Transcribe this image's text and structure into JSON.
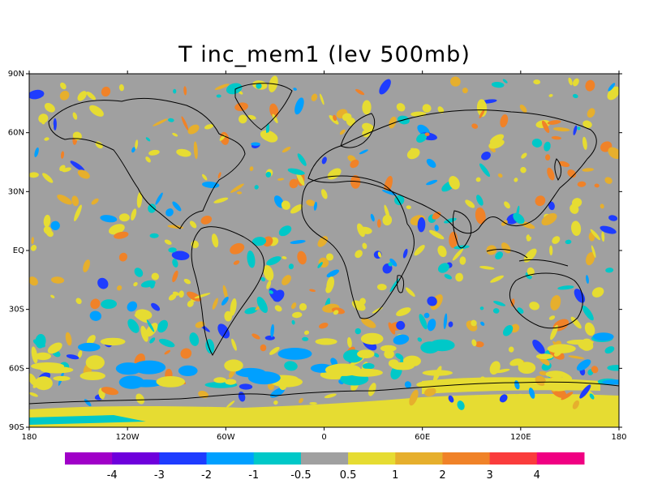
{
  "title": "T inc_mem1 (lev 500mb)",
  "lat_labels": [
    "90N",
    "60N",
    "30N",
    "EQ",
    "30S",
    "60S",
    "90S"
  ],
  "lon_labels": [
    "180",
    "120W",
    "60W",
    "0",
    "60E",
    "120E",
    "180"
  ],
  "colorbar": {
    "colors": [
      "#a000c8",
      "#6e00dc",
      "#1e3cff",
      "#00a0ff",
      "#00c8c8",
      "#a0a0a0",
      "#e6dc32",
      "#e6af2d",
      "#f08228",
      "#fa3c3c",
      "#f00082"
    ],
    "labels": [
      "-4",
      "-3",
      "-2",
      "-1",
      "-0.5",
      "0.5",
      "1",
      "2",
      "3",
      "4"
    ]
  },
  "colors": {
    "background": "#a0a0a0",
    "coast": "#000000"
  }
}
